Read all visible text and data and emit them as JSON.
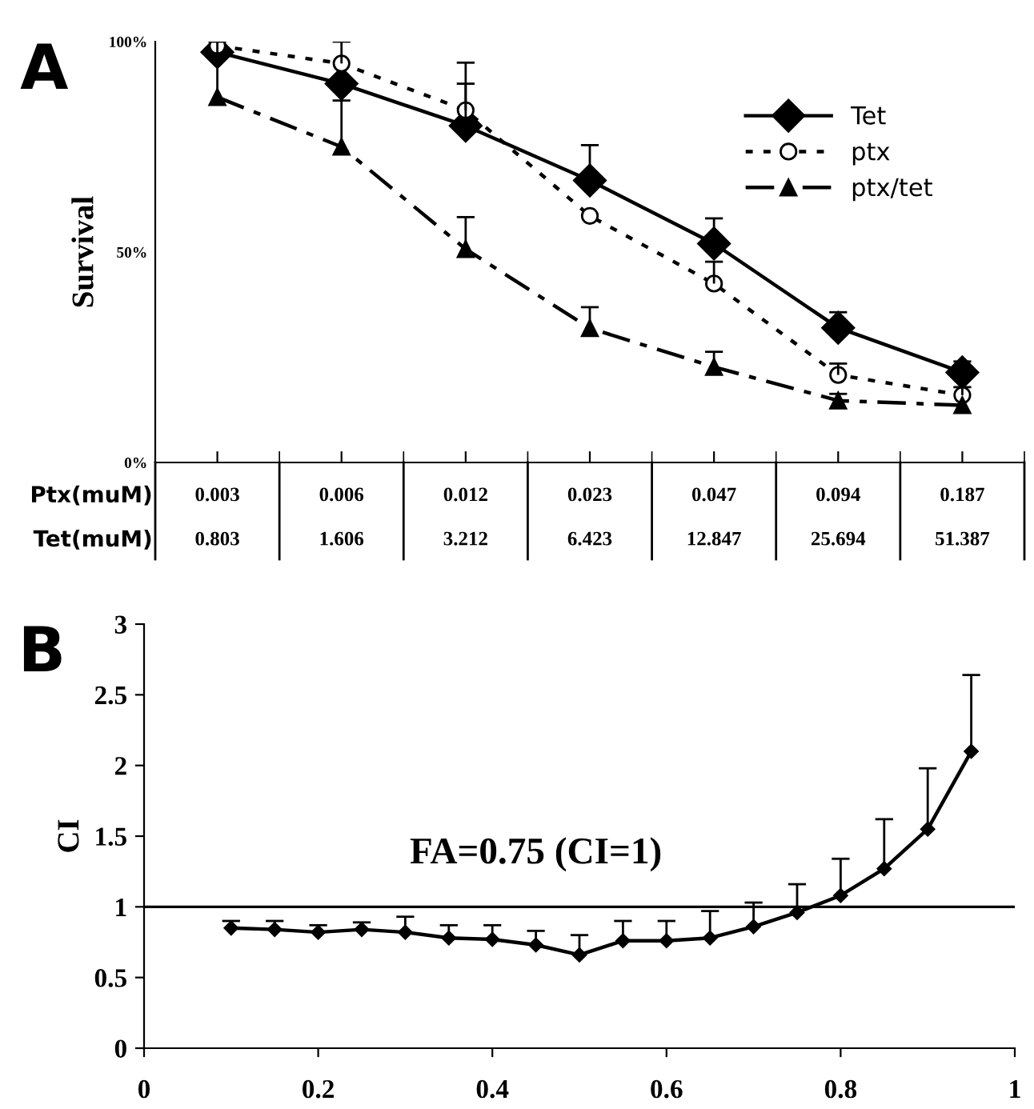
{
  "chart_data": [
    {
      "type": "line",
      "title": "A",
      "ylabel": "Survival",
      "categories": [
        "0.003",
        "0.006",
        "0.012",
        "0.023",
        "0.047",
        "0.094",
        "0.187"
      ],
      "ylim": [
        0,
        100
      ],
      "yticks": [
        {
          "value": 0,
          "label": "0%"
        },
        {
          "value": 50,
          "label": "50%"
        },
        {
          "value": 100,
          "label": "100%"
        }
      ],
      "series": [
        {
          "name": "Tet",
          "color": "#000000",
          "marker": "diamond",
          "line_style": "solid",
          "values": [
            97.5,
            90,
            80,
            67,
            52,
            32,
            21.4
          ],
          "errors": [
            null,
            null,
            [
              80,
              90
            ],
            [
              67,
              75.4
            ],
            [
              52,
              58
            ],
            [
              32,
              35.7
            ],
            [
              21.4,
              24
            ]
          ]
        },
        {
          "name": "ptx",
          "color": "#000000",
          "marker": "circle",
          "line_style": "dotted",
          "values": [
            99,
            94.8,
            83.7,
            58.6,
            42.5,
            20.8,
            16
          ],
          "errors": [
            null,
            [
              94.8,
              100
            ],
            [
              83.7,
              95
            ],
            null,
            [
              42.5,
              47.7
            ],
            [
              20.8,
              23.5
            ],
            [
              16,
              17.9
            ]
          ]
        },
        {
          "name": "ptx/tet",
          "color": "#000000",
          "marker": "triangle",
          "line_style": "dashed",
          "values": [
            86.8,
            75,
            50.7,
            31.9,
            22.7,
            14.7,
            13.6
          ],
          "errors": [
            [
              86.8,
              100
            ],
            [
              75,
              86
            ],
            [
              50.7,
              58.3
            ],
            [
              31.9,
              36.9
            ],
            [
              22.7,
              26.3
            ],
            [
              14.7,
              16.3
            ],
            null
          ]
        }
      ],
      "annotations": [
        "Ptx(muM)",
        "Tet(muM)",
        "0.803",
        "1.606",
        "3.212",
        "6.423",
        "12.847",
        "25.694",
        "51.387"
      ],
      "legend": "top right",
      "grid": false
    },
    {
      "type": "line",
      "title": "B",
      "ylabel": "CI",
      "x": [
        0.1,
        0.15,
        0.2,
        0.25,
        0.3,
        0.35,
        0.4,
        0.45,
        0.5,
        0.55,
        0.6,
        0.65,
        0.7,
        0.75,
        0.8,
        0.85,
        0.9,
        0.95
      ],
      "xlim": [
        0,
        1
      ],
      "xticks": [
        0,
        0.2,
        0.4,
        0.6,
        0.8,
        1
      ],
      "ylim": [
        0,
        3
      ],
      "yticks": [
        0,
        0.5,
        1,
        1.5,
        2,
        2.5,
        3
      ],
      "series": [
        {
          "color": "#000000",
          "marker": "diamond",
          "line_style": "solid",
          "values": [
            0.85,
            0.84,
            0.82,
            0.84,
            0.82,
            0.78,
            0.77,
            0.73,
            0.66,
            0.76,
            0.76,
            0.78,
            0.86,
            0.96,
            1.08,
            1.27,
            1.55,
            2.1
          ],
          "errors": [
            [
              0.85,
              0.9
            ],
            [
              0.84,
              0.9
            ],
            [
              0.82,
              0.87
            ],
            [
              0.84,
              0.89
            ],
            [
              0.82,
              0.93
            ],
            [
              0.78,
              0.87
            ],
            [
              0.77,
              0.87
            ],
            [
              0.73,
              0.83
            ],
            [
              0.66,
              0.8
            ],
            [
              0.76,
              0.9
            ],
            [
              0.76,
              0.9
            ],
            [
              0.78,
              0.97
            ],
            [
              0.86,
              1.03
            ],
            [
              0.96,
              1.16
            ],
            [
              1.08,
              1.34
            ],
            [
              1.27,
              1.62
            ],
            [
              1.55,
              1.98
            ],
            [
              2.1,
              2.64
            ]
          ]
        }
      ],
      "ref_lines": [
        {
          "axis": "y",
          "value": 1,
          "label": "FA=0.75 (CI=1)",
          "color": "#000000",
          "line_style": "solid"
        }
      ],
      "grid": false
    }
  ]
}
